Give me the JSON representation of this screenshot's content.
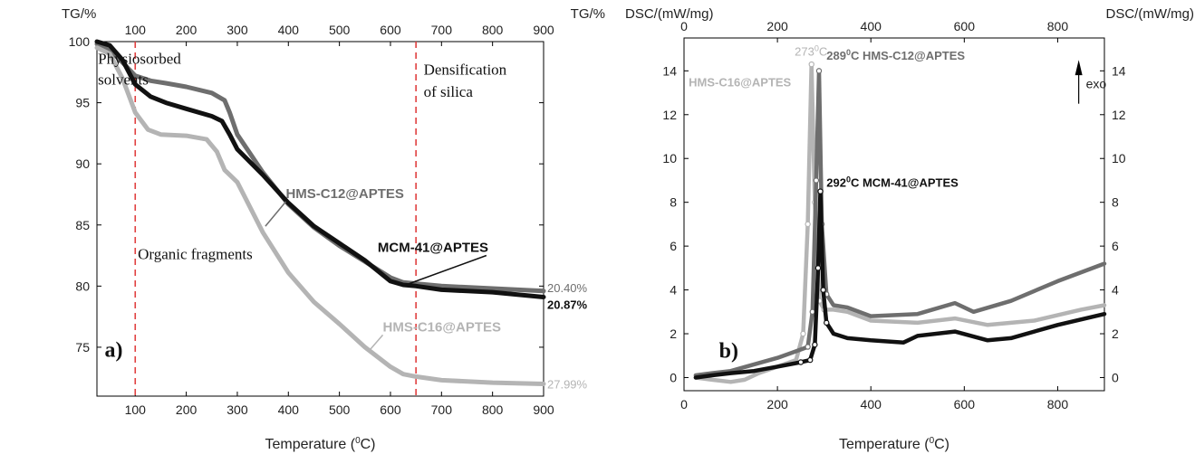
{
  "chart_data": [
    {
      "type": "line",
      "panel_label": "a)",
      "left_unit_label": "TG/%",
      "right_unit_label": "TG/%",
      "xlabel_prefix": "Temperature (",
      "xlabel_sup": "0",
      "xlabel_suffix": "C)",
      "xlim": [
        25,
        900
      ],
      "ylim": [
        71,
        100
      ],
      "x_ticks": [
        100,
        200,
        300,
        400,
        500,
        600,
        700,
        800,
        900
      ],
      "y_ticks": [
        75,
        80,
        85,
        90,
        95,
        100
      ],
      "vlines": [
        100,
        650
      ],
      "annotations": [
        {
          "text": "Physiosorbed",
          "x": 27,
          "y": 98.2
        },
        {
          "text": "solvents",
          "x": 27,
          "y": 96.5
        },
        {
          "text": "Densification",
          "x": 665,
          "y": 97.3
        },
        {
          "text": "of silica",
          "x": 665,
          "y": 95.5
        },
        {
          "text": "Organic fragments",
          "x": 105,
          "y": 82.2
        }
      ],
      "series": [
        {
          "name": "HMS-C12@APTES",
          "color": "#6e6e6e",
          "x": [
            25,
            50,
            75,
            100,
            130,
            160,
            200,
            250,
            275,
            285,
            300,
            350,
            400,
            450,
            500,
            550,
            600,
            625,
            650,
            700,
            800,
            900
          ],
          "y": [
            99.8,
            99.3,
            98.3,
            97.2,
            96.8,
            96.6,
            96.3,
            95.8,
            95.2,
            94.2,
            92.4,
            89.3,
            86.7,
            84.8,
            83.3,
            82.0,
            80.7,
            80.3,
            80.2,
            80.0,
            79.8,
            79.6
          ],
          "end_label": "20.40%"
        },
        {
          "name": "MCM-41@APTES",
          "color": "#111111",
          "x": [
            25,
            50,
            75,
            100,
            130,
            160,
            200,
            250,
            270,
            285,
            300,
            350,
            400,
            450,
            500,
            550,
            600,
            625,
            650,
            700,
            800,
            900
          ],
          "y": [
            100,
            99.7,
            98.5,
            96.5,
            95.5,
            95.0,
            94.5,
            93.9,
            93.5,
            92.4,
            91.2,
            89.1,
            86.8,
            84.9,
            83.5,
            82.1,
            80.4,
            80.1,
            80.0,
            79.7,
            79.5,
            79.1
          ],
          "end_label": "20.87%"
        },
        {
          "name": "HMS-C16@APTES",
          "color": "#b4b4b4",
          "x": [
            25,
            50,
            75,
            100,
            125,
            150,
            200,
            240,
            260,
            275,
            300,
            350,
            400,
            450,
            500,
            550,
            600,
            625,
            650,
            700,
            800,
            900
          ],
          "y": [
            99.5,
            99.0,
            97.0,
            94.2,
            92.8,
            92.4,
            92.3,
            92.0,
            91.0,
            89.5,
            88.5,
            84.4,
            81.1,
            78.7,
            76.9,
            75.0,
            73.4,
            72.8,
            72.6,
            72.3,
            72.1,
            72.0
          ],
          "end_label": "27.99%"
        }
      ]
    },
    {
      "type": "line",
      "panel_label": "b)",
      "left_unit_label": "DSC/(mW/mg)",
      "right_unit_label": "DSC/(mW/mg)",
      "xlabel_prefix": "Temperature (",
      "xlabel_sup": "0",
      "xlabel_suffix": "C)",
      "xlim": [
        0,
        900
      ],
      "ylim": [
        -0.6,
        15.5
      ],
      "x_ticks": [
        0,
        200,
        400,
        600,
        800
      ],
      "y_ticks": [
        0,
        2,
        4,
        6,
        8,
        10,
        12,
        14
      ],
      "exo_label": "exo",
      "peak_labels": [
        {
          "temp": "273",
          "sup": "0",
          "unit": "C",
          "sample": "",
          "color": "#b4b4b4"
        },
        {
          "temp": "289",
          "sup": "0",
          "unit": "C",
          "sample": "HMS-C12@APTES",
          "color": "#6e6e6e"
        },
        {
          "temp": "292",
          "sup": "0",
          "unit": "C",
          "sample": "MCM-41@APTES",
          "color": "#111111"
        }
      ],
      "series": [
        {
          "name": "HMS-C16@APTES",
          "color": "#b4b4b4",
          "x": [
            25,
            60,
            100,
            130,
            160,
            200,
            240,
            255,
            265,
            273,
            280,
            290,
            300,
            320,
            350,
            400,
            500,
            580,
            650,
            750,
            850,
            900
          ],
          "y": [
            0.0,
            -0.1,
            -0.2,
            -0.1,
            0.2,
            0.5,
            0.8,
            2.0,
            7.0,
            14.3,
            8.0,
            3.5,
            3.1,
            3.1,
            3.0,
            2.6,
            2.5,
            2.7,
            2.4,
            2.6,
            3.1,
            3.3
          ]
        },
        {
          "name": "HMS-C12@APTES",
          "color": "#6e6e6e",
          "x": [
            25,
            60,
            100,
            150,
            200,
            240,
            265,
            275,
            283,
            289,
            295,
            305,
            320,
            350,
            400,
            500,
            580,
            620,
            700,
            800,
            900
          ],
          "y": [
            0.1,
            0.2,
            0.3,
            0.6,
            0.9,
            1.2,
            1.4,
            3.0,
            9.0,
            14.0,
            7.0,
            3.8,
            3.3,
            3.2,
            2.8,
            2.9,
            3.4,
            3.0,
            3.5,
            4.4,
            5.2
          ]
        },
        {
          "name": "MCM-41@APTES",
          "color": "#111111",
          "x": [
            25,
            60,
            100,
            150,
            200,
            250,
            270,
            280,
            287,
            292,
            298,
            305,
            320,
            350,
            400,
            470,
            500,
            580,
            650,
            700,
            800,
            900
          ],
          "y": [
            0.0,
            0.1,
            0.2,
            0.3,
            0.5,
            0.7,
            0.8,
            1.5,
            5.0,
            8.5,
            4.0,
            2.5,
            2.0,
            1.8,
            1.7,
            1.6,
            1.9,
            2.1,
            1.7,
            1.8,
            2.4,
            2.9
          ]
        }
      ]
    }
  ],
  "panel_a_labels": [
    {
      "text": "HMS-C12@APTES",
      "x": 395,
      "y": 87.2,
      "color": "#6e6e6e",
      "pointer": [
        355,
        84.9
      ]
    },
    {
      "text": "MCM-41@APTES",
      "x": 575,
      "y": 82.8,
      "color": "#111111",
      "pointer": [
        630,
        80.1
      ]
    },
    {
      "text": "HMS-C16@APTES",
      "x": 585,
      "y": 76.3,
      "color": "#b4b4b4",
      "pointer": [
        560,
        74.8
      ]
    }
  ]
}
